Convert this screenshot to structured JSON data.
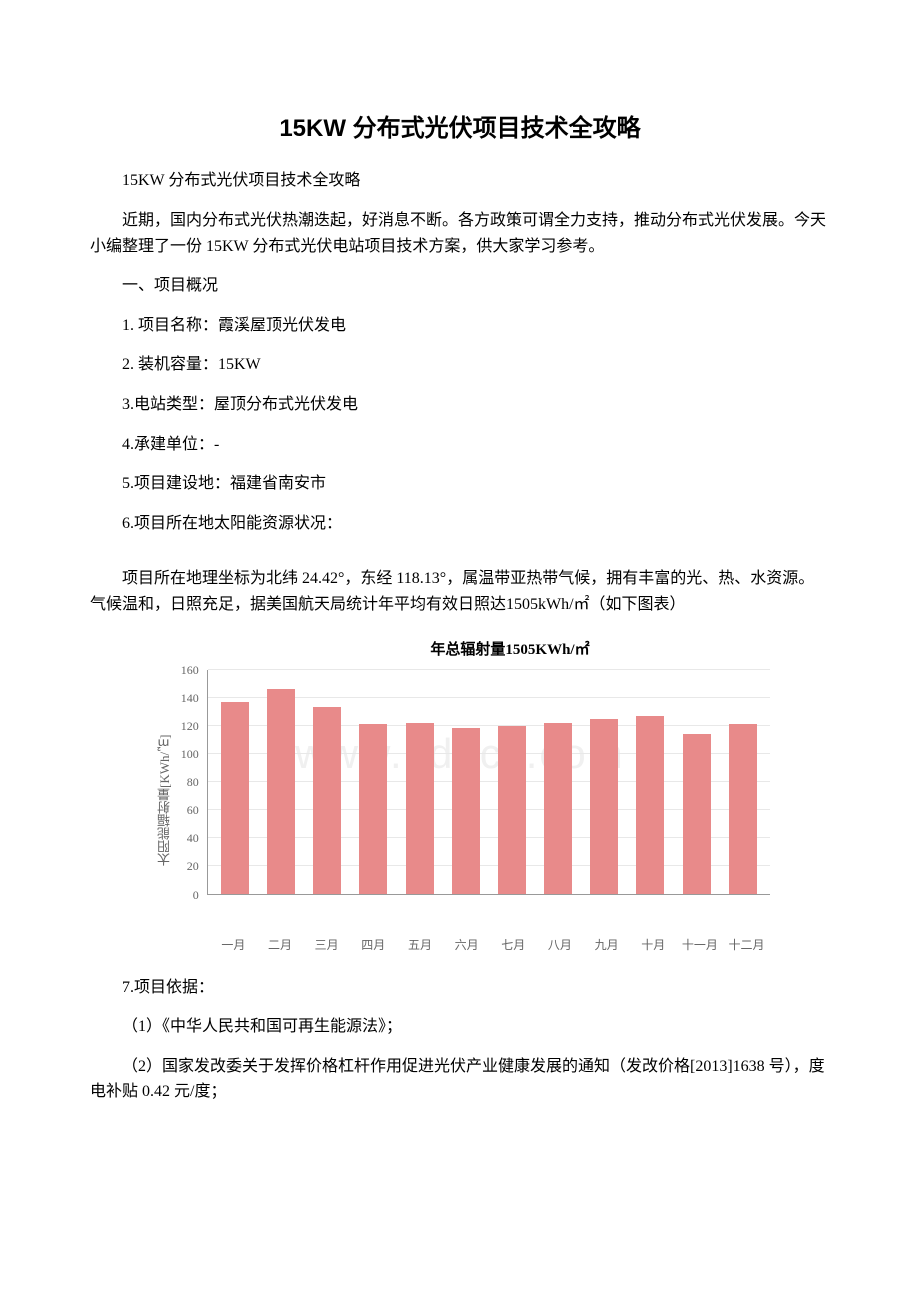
{
  "title": "15KW 分布式光伏项目技术全攻略",
  "p1": "15KW 分布式光伏项目技术全攻略",
  "p2": "近期，国内分布式光伏热潮迭起，好消息不断。各方政策可谓全力支持，推动分布式光伏发展。今天小编整理了一份 15KW 分布式光伏电站项目技术方案，供大家学习参考。",
  "p3": "一、项目概况",
  "p4": "1. 项目名称：霞溪屋顶光伏发电",
  "p5": "2. 装机容量：15KW",
  "p6": "3.电站类型：屋顶分布式光伏发电",
  "p7": "4.承建单位：-",
  "p8": "5.项目建设地：福建省南安市",
  "p9": "6.项目所在地太阳能资源状况：",
  "p10": "项目所在地理坐标为北纬 24.42°，东经 118.13°，属温带亚热带气候，拥有丰富的光、热、水资源。气候温和，日照充足，据美国航天局统计年平均有效日照达1505kWh/㎡（如下图表）",
  "p11": "7.项目依据：",
  "p12": "（1）《中华人民共和国可再生能源法》；",
  "p13": "（2）国家发改委关于发挥价格杠杆作用促进光伏产业健康发展的通知（发改价格[2013]1638 号），度电补贴 0.42 元/度；",
  "watermark": "www.bdocx.com",
  "chart": {
    "type": "bar",
    "title": "年总辐射量1505KWh/㎡",
    "ylabel": "太阳能辐射量[KWh/㎡]",
    "categories": [
      "一月",
      "二月",
      "三月",
      "四月",
      "五月",
      "六月",
      "七月",
      "八月",
      "九月",
      "十月",
      "十一月",
      "十二月"
    ],
    "values": [
      137,
      146,
      133,
      121,
      122,
      118,
      120,
      122,
      125,
      127,
      114,
      121
    ],
    "bar_color": "#e88a8a",
    "ylim_max": 160,
    "ytick_step": 20,
    "yticks": [
      "160",
      "140",
      "120",
      "100",
      "80",
      "60",
      "40",
      "20",
      "0"
    ],
    "background_color": "#ffffff",
    "grid_color": "#e8e8e8",
    "axis_color": "#999999",
    "tick_color": "#666666"
  }
}
